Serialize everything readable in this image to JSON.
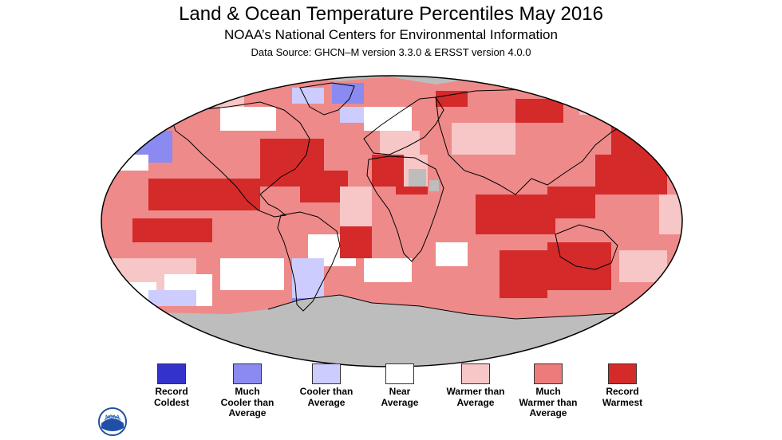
{
  "header": {
    "title": "Land & Ocean Temperature Percentiles May 2016",
    "subtitle": "NOAA’s National Centers for Environmental Information",
    "source": "Data Source: GHCN–M version 3.3.0 & ERSST version 4.0.0"
  },
  "map": {
    "projection": "robinson",
    "ocean_default_category": "much-warmer-than-average",
    "land_outline_color": "#000000",
    "no_data_color": "#bdbdbd"
  },
  "legend": {
    "items": [
      {
        "label": "Record\nColdest",
        "color": "#3333cc"
      },
      {
        "label": "Much\nCooler than\nAverage",
        "color": "#8a8af0"
      },
      {
        "label": "Cooler than\nAverage",
        "color": "#ccccff"
      },
      {
        "label": "Near\nAverage",
        "color": "#ffffff"
      },
      {
        "label": "Warmer than\nAverage",
        "color": "#f7c6c6"
      },
      {
        "label": "Much\nWarmer than\nAverage",
        "color": "#ee7b7b"
      },
      {
        "label": "Record\nWarmest",
        "color": "#d42a2a"
      }
    ]
  },
  "logo": {
    "icon": "noaa-logo-icon",
    "text": "NOAA",
    "color": "#1f4fa6"
  }
}
